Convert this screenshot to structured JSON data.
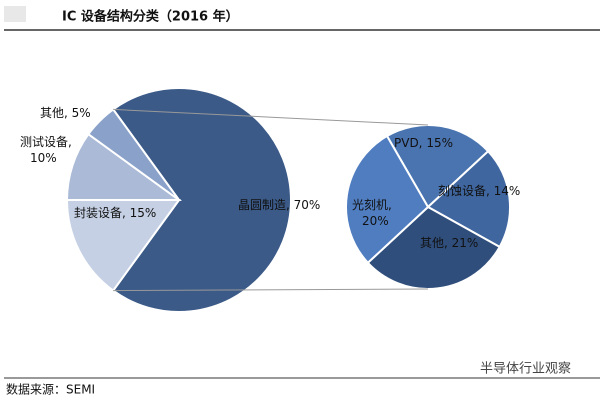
{
  "chart_data": [
    {
      "type": "pie",
      "title": "IC 设备结构分类（2016 年）",
      "values": [
        70,
        15,
        10,
        5
      ],
      "value_labels": [
        "晶圆制造, 70%",
        "封装设备, 15%",
        "测试设备,\n10%",
        "其他, 5%"
      ],
      "colors": [
        "#3b5a88",
        "#c5d0e4",
        "#aabad7",
        "#8aa1c9"
      ]
    },
    {
      "type": "pie",
      "values": [
        15,
        14,
        21,
        20
      ],
      "value_labels": [
        "PVD, 15%",
        "刻蚀设备, 14%",
        "其他, 21%",
        "光刻机,\n20%"
      ],
      "colors": [
        "#4a74b0",
        "#3f669f",
        "#2f4e7c",
        "#4f7dc0"
      ]
    }
  ],
  "source": "数据来源：SEMI",
  "watermark": "半导体行业观察"
}
